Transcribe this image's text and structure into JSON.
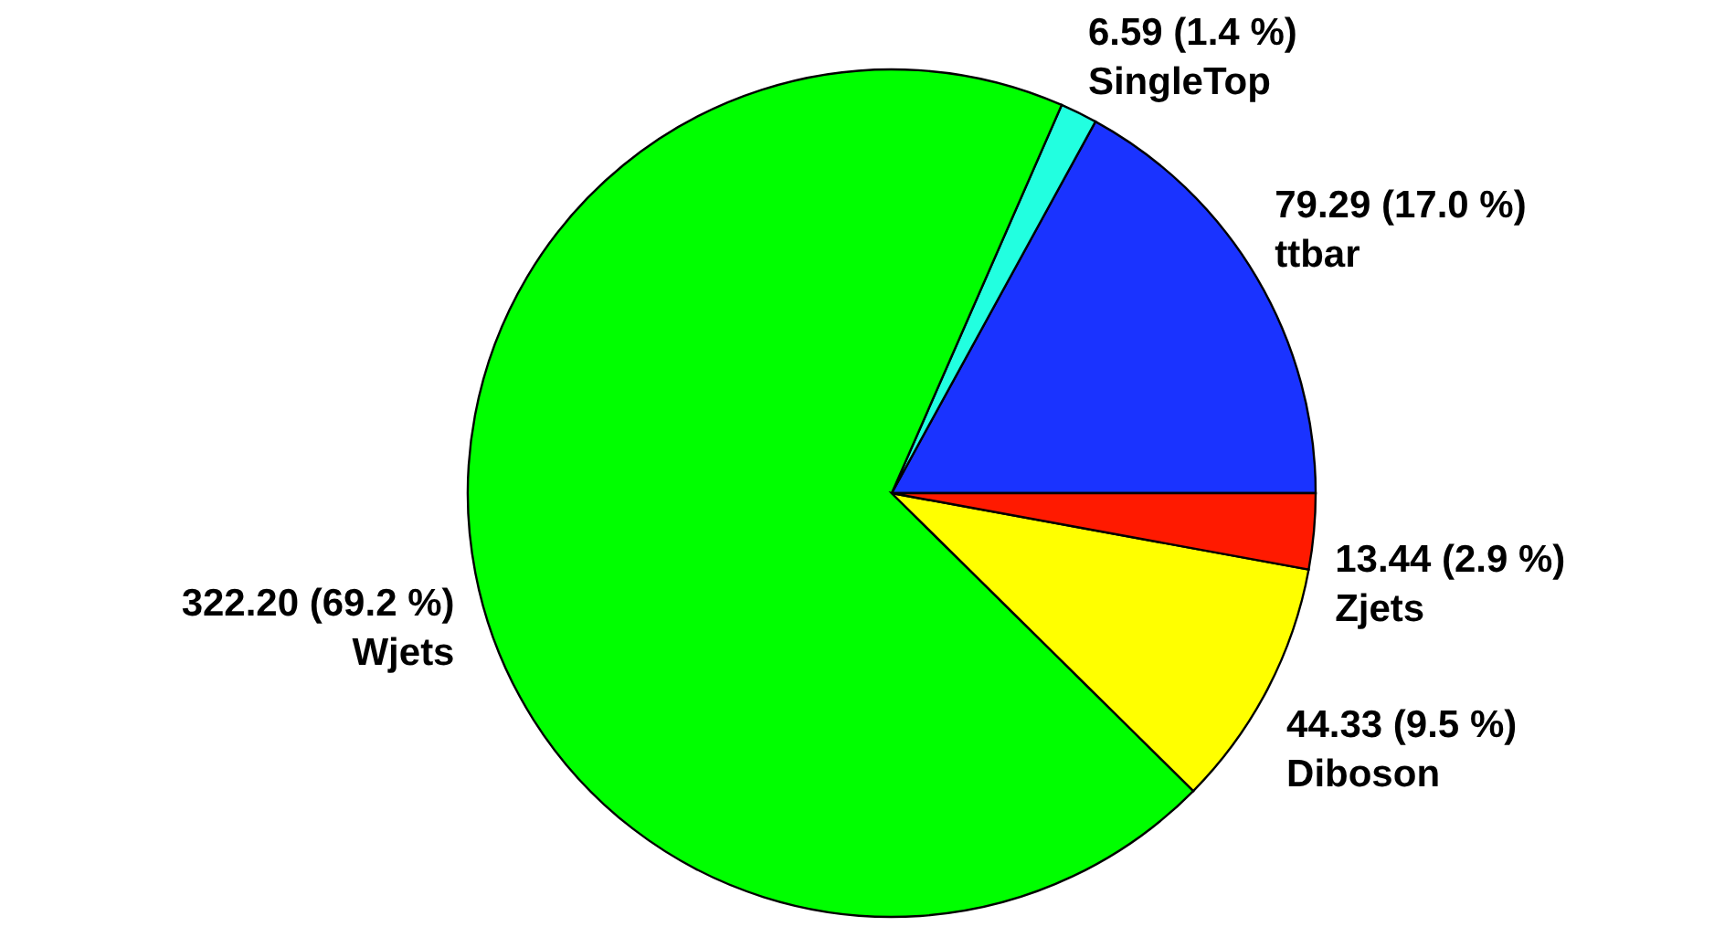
{
  "chart_data": {
    "type": "pie",
    "categories": [
      "ttbar",
      "SingleTop",
      "Wjets",
      "Diboson",
      "Zjets"
    ],
    "values": [
      79.29,
      6.59,
      322.2,
      44.33,
      13.44
    ],
    "colors": [
      "#1a33ff",
      "#22ffe0",
      "#00ff00",
      "#ffff00",
      "#ff1a00"
    ],
    "value_labels": [
      "79.29 (17.0 %)",
      "6.59 (1.4 %)",
      "322.20 (69.2 %)",
      "44.33 (9.5 %)",
      "13.44 (2.9 %)"
    ]
  }
}
